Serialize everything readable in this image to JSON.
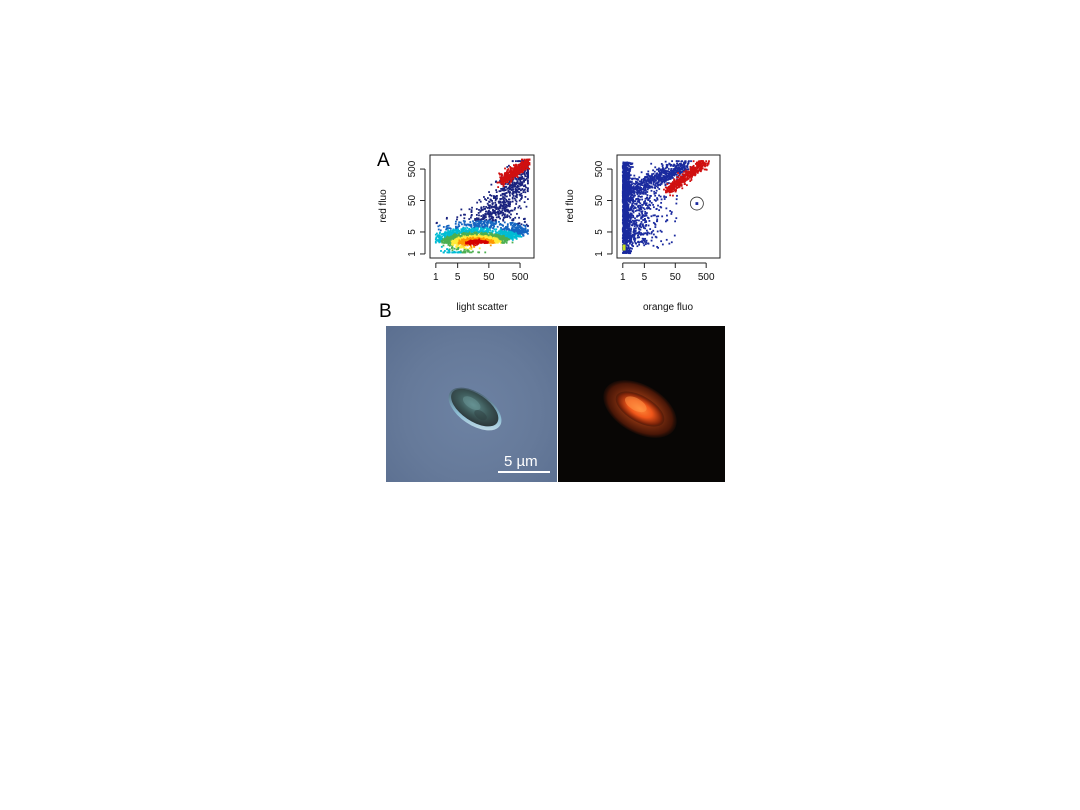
{
  "figure": {
    "panel_a_label": "A",
    "panel_b_label": "B",
    "scale_bar_label": "5 µm"
  },
  "chart_data": [
    {
      "type": "scatter",
      "render": "density",
      "xlabel": "light scatter",
      "ylabel": "red fluo",
      "xscale": "log",
      "yscale": "log",
      "xticks": [
        1,
        5,
        50,
        500
      ],
      "yticks": [
        1,
        5,
        50,
        500
      ],
      "xlim": [
        0.7,
        1300
      ],
      "ylim": [
        0.8,
        1300
      ],
      "series": [
        {
          "color": "#d01010",
          "x_range": [
            100,
            1000
          ],
          "y_range": [
            200,
            1000
          ]
        },
        {
          "density_palette": [
            "#1a237e",
            "#1565c0",
            "#00bcd4",
            "#4caf50",
            "#ffeb3b",
            "#ff9800",
            "#d50000"
          ],
          "x_range": [
            1,
            1000
          ],
          "y_range": [
            1,
            800
          ],
          "peak": {
            "x": 20,
            "y": 2
          }
        }
      ],
      "grid": false
    },
    {
      "type": "scatter",
      "xlabel": "orange fluo",
      "ylabel": "red fluo",
      "xscale": "log",
      "yscale": "log",
      "xticks": [
        1,
        5,
        50,
        500
      ],
      "yticks": [
        1,
        5,
        50,
        500
      ],
      "xlim": [
        0.7,
        1300
      ],
      "ylim": [
        0.8,
        1300
      ],
      "series": [
        {
          "color": "#1a2a9e",
          "x_range": [
            1,
            200
          ],
          "y_range": [
            1,
            1000
          ]
        },
        {
          "color": "#d01010",
          "x_range": [
            30,
            500
          ],
          "y_range": [
            100,
            800
          ]
        }
      ],
      "annotation": {
        "shape": "circle",
        "x": 250,
        "y": 40
      },
      "grid": false
    }
  ],
  "micrographs": {
    "left": {
      "background": "#667a9a",
      "description_icon": "cell-brightfield"
    },
    "right": {
      "background": "#080605",
      "description_icon": "cell-fluorescence"
    }
  }
}
